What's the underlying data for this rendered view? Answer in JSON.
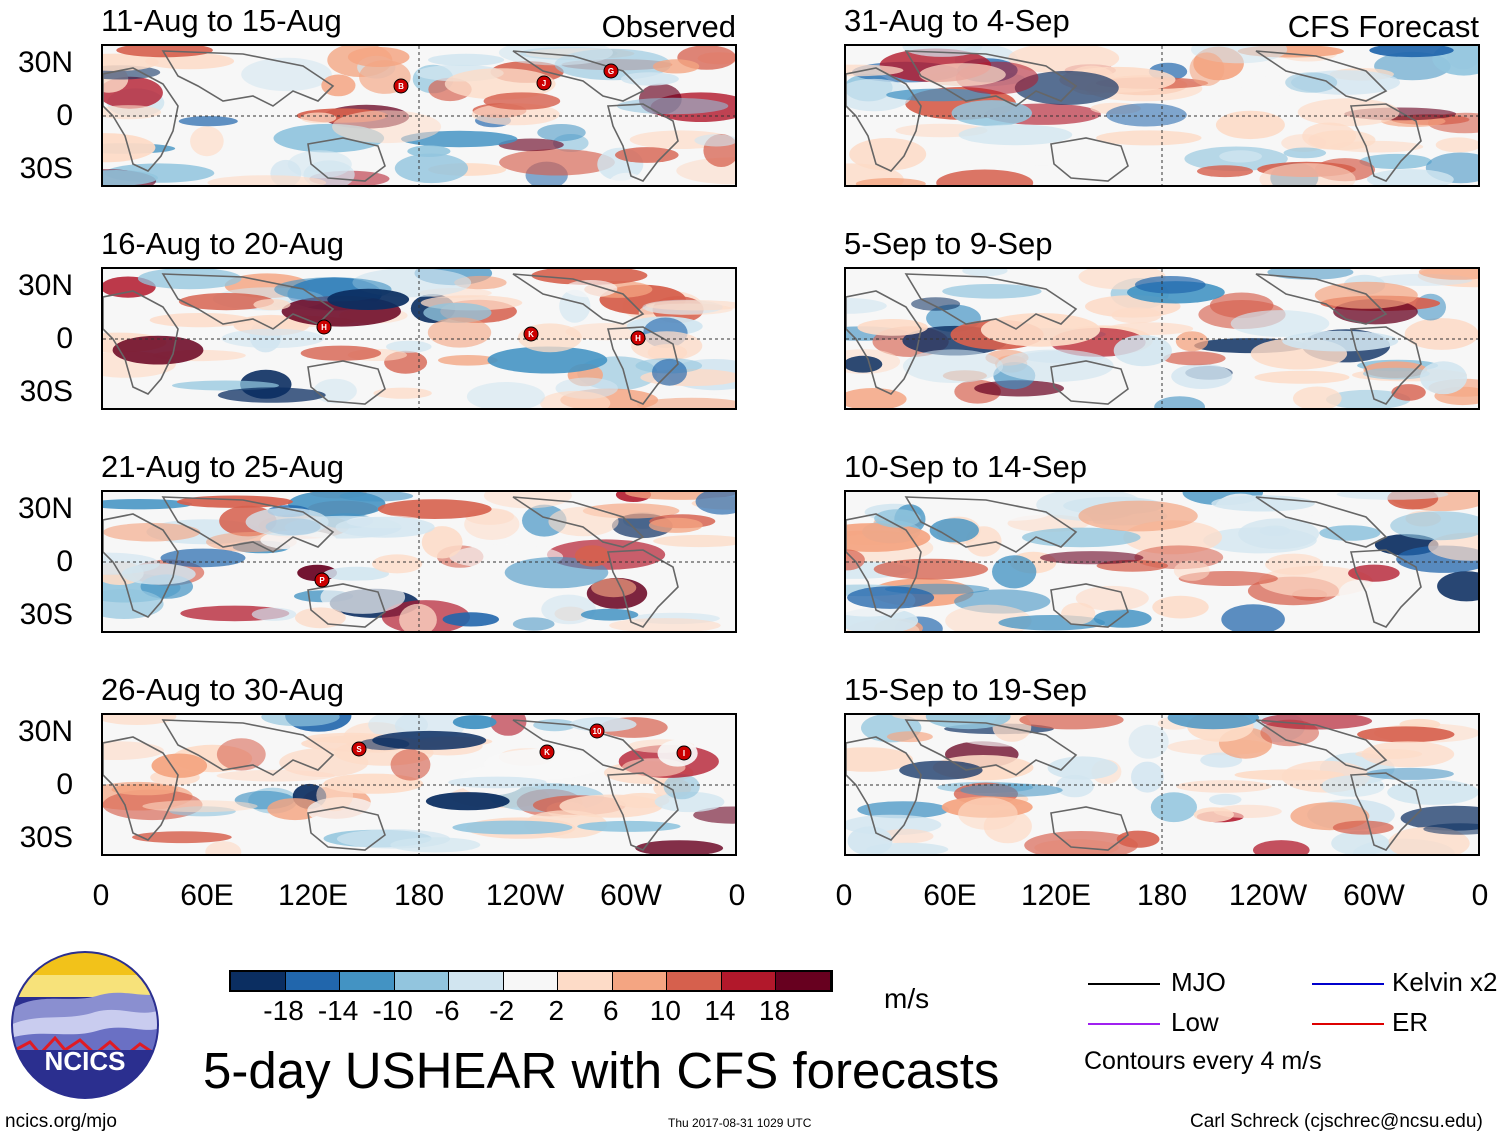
{
  "panels_left": [
    {
      "title": "11-Aug to 15-Aug",
      "corner": "Observed"
    },
    {
      "title": "16-Aug to 20-Aug",
      "corner": ""
    },
    {
      "title": "21-Aug to 25-Aug",
      "corner": ""
    },
    {
      "title": "26-Aug to 30-Aug",
      "corner": ""
    }
  ],
  "panels_right": [
    {
      "title": "31-Aug to 4-Sep",
      "corner": "CFS Forecast"
    },
    {
      "title": "5-Sep to 9-Sep",
      "corner": ""
    },
    {
      "title": "10-Sep to 14-Sep",
      "corner": ""
    },
    {
      "title": "15-Sep to 19-Sep",
      "corner": ""
    }
  ],
  "lat_labels": [
    "30N",
    "0",
    "30S"
  ],
  "lon_labels": [
    "0",
    "60E",
    "120E",
    "180",
    "120W",
    "60W",
    "0"
  ],
  "storm_markers": [
    {
      "panel": 0,
      "letter": "B"
    },
    {
      "panel": 0,
      "letter": "J"
    },
    {
      "panel": 0,
      "letter": "G"
    },
    {
      "panel": 1,
      "letter": "H"
    },
    {
      "panel": 1,
      "letter": "K"
    },
    {
      "panel": 1,
      "letter": "H"
    },
    {
      "panel": 2,
      "letter": "P"
    },
    {
      "panel": 3,
      "letter": "S"
    },
    {
      "panel": 3,
      "letter": "10"
    },
    {
      "panel": 3,
      "letter": "K"
    },
    {
      "panel": 3,
      "letter": "I"
    }
  ],
  "colorbar": {
    "colors": [
      "#0b2e61",
      "#2166ac",
      "#4393c3",
      "#92c5de",
      "#d1e5f0",
      "#f7f7f7",
      "#fddbc7",
      "#f4a582",
      "#d6604d",
      "#b2182b",
      "#67001f"
    ],
    "labels": [
      "-18",
      "-14",
      "-10",
      "-6",
      "-2",
      "2",
      "6",
      "10",
      "14",
      "18"
    ],
    "units": "m/s"
  },
  "legend": {
    "mjo": "MJO",
    "mjo_color": "#000000",
    "kelvin": "Kelvin x2",
    "kelvin_color": "#0000cc",
    "low": "Low",
    "low_color": "#a020f0",
    "er": "ER",
    "er_color": "#dd0000",
    "contours": "Contours every 4 m/s"
  },
  "logo": {
    "text": "NCICS"
  },
  "title": "5-day USHEAR with CFS forecasts",
  "footer": {
    "url": "ncics.org/mjo",
    "timestamp": "Thu 2017-08-31 1029 UTC",
    "author": "Carl Schreck (cjschrec@ncsu.edu)"
  }
}
